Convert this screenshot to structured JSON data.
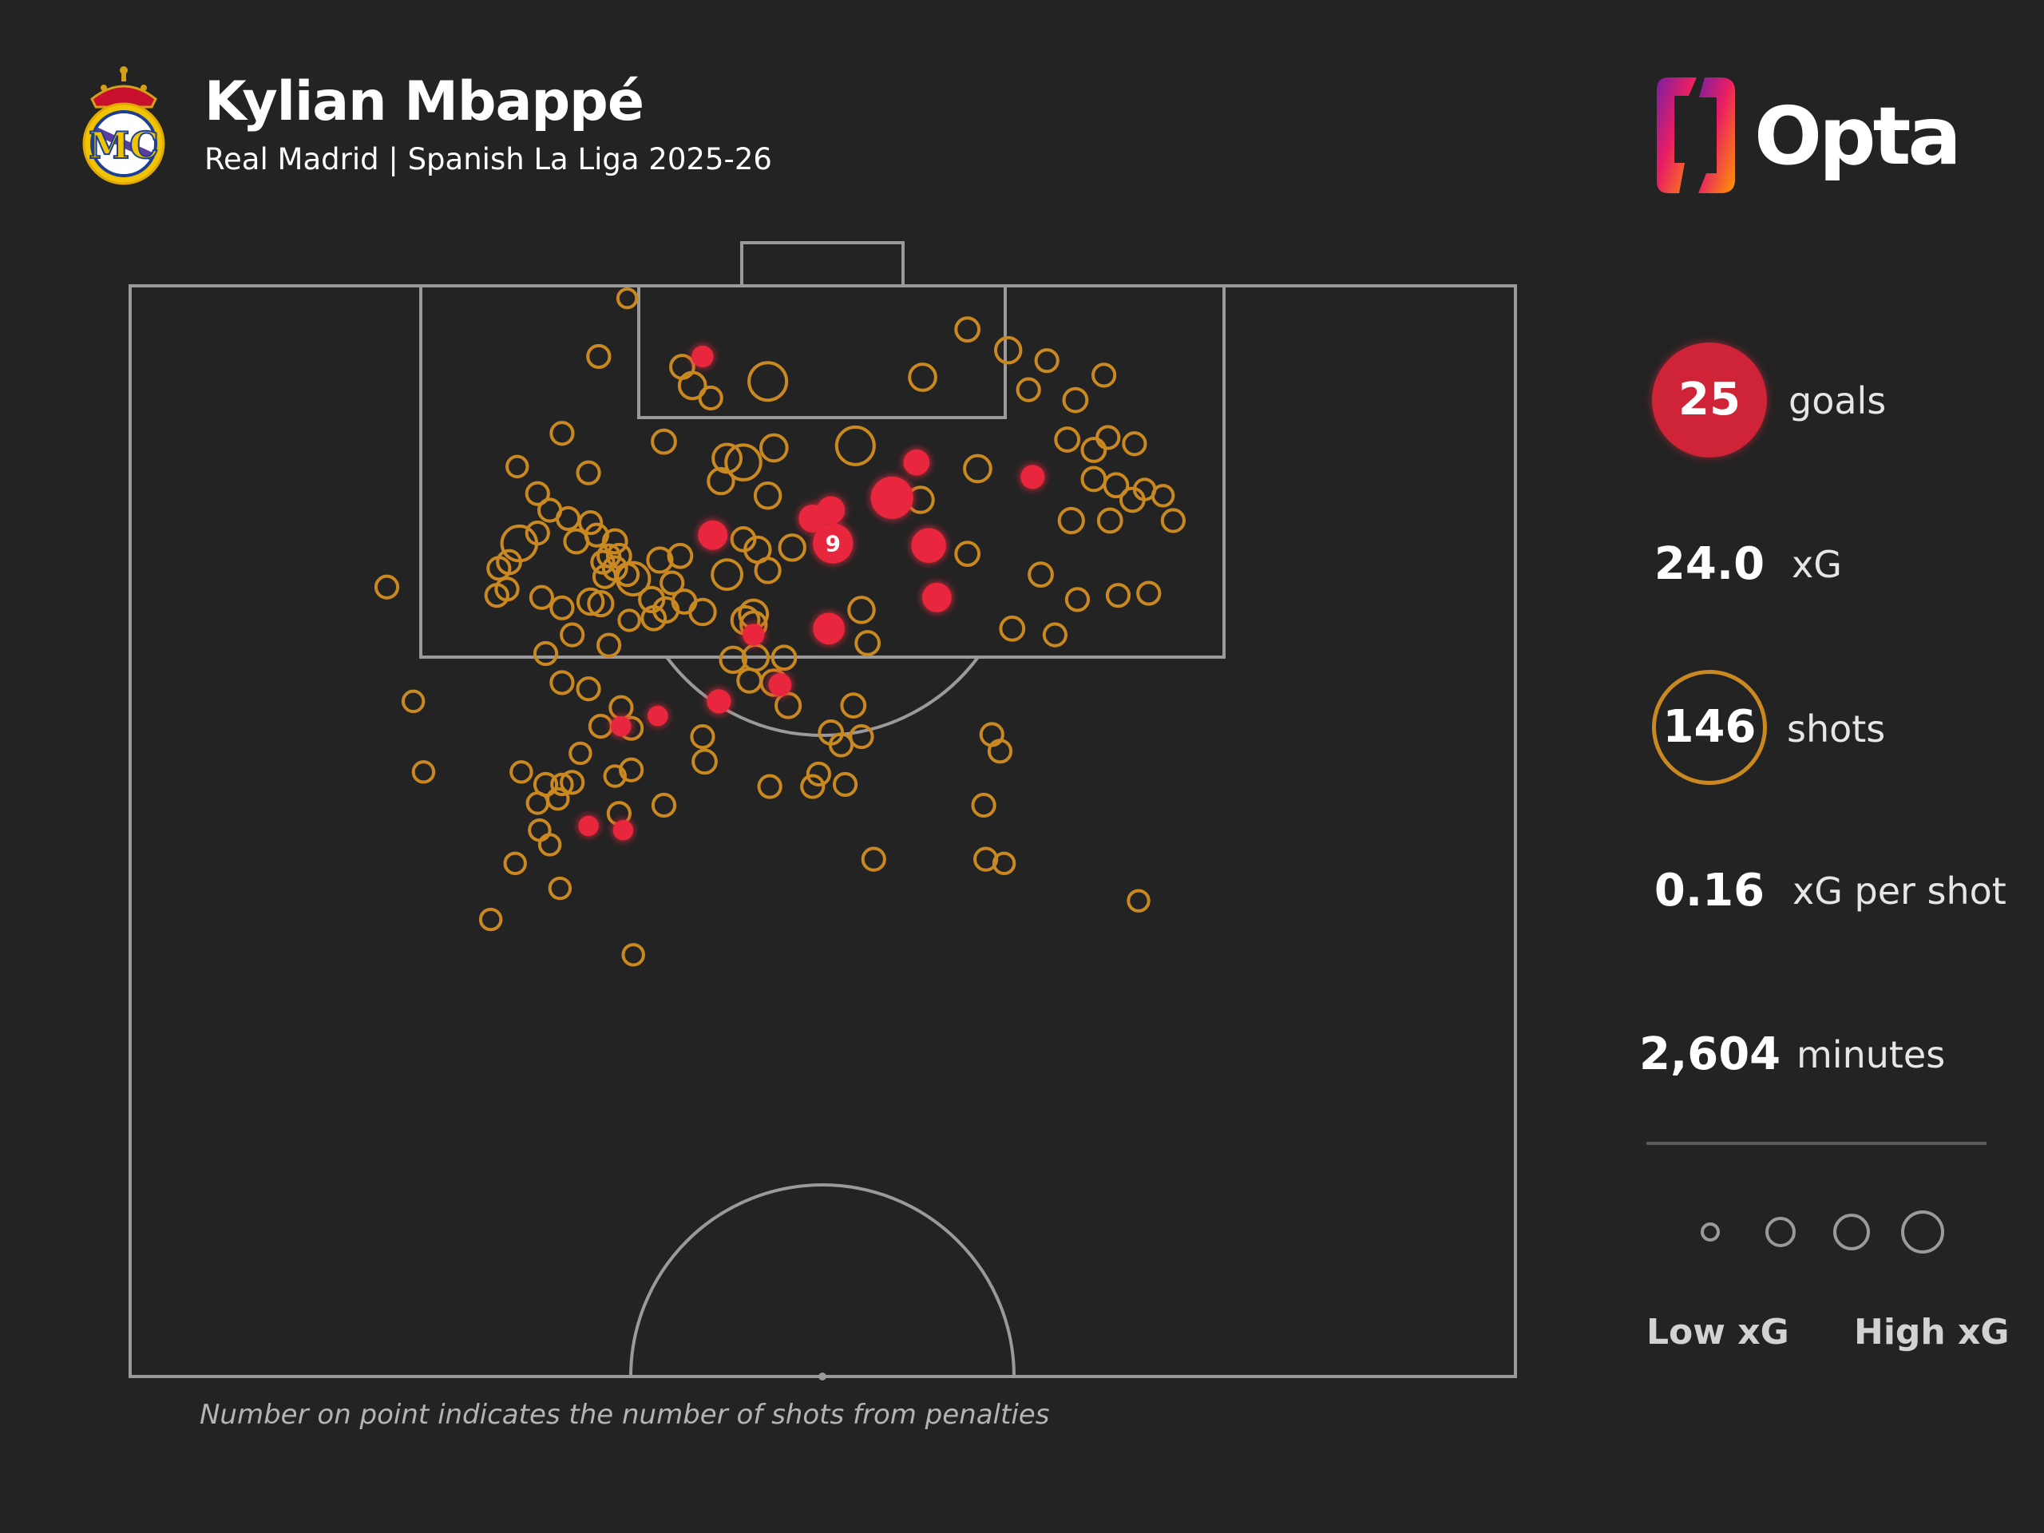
{
  "header": {
    "player_name": "Kylian Mbappé",
    "subtitle": "Real Madrid | Spanish La Liga 2025-26",
    "crest_icon": "real-madrid-crest-icon",
    "brand_logo_text": "Opta"
  },
  "stats": {
    "goals": {
      "value": "25",
      "label": "goals"
    },
    "xg": {
      "value": "24.0",
      "label": "xG"
    },
    "shots": {
      "value": "146",
      "label": "shots"
    },
    "xg_per_shot": {
      "value": "0.16",
      "label": "xG per shot"
    },
    "minutes": {
      "value": "2,604",
      "label": "minutes"
    }
  },
  "legend": {
    "low_label": "Low xG",
    "high_label": "High xG",
    "sizes": [
      0.05,
      0.15,
      0.3,
      0.5
    ]
  },
  "footnote": "Number on point indicates the number of shots from penalties",
  "colors": {
    "background": "#232323",
    "pitch_lines": "#9a9a9a",
    "goal": "#e8283c",
    "shot": "#c98920",
    "goals_badge": "#cf2337"
  },
  "chart_data": {
    "type": "scatter",
    "description_of_axes": "Half-pitch shot map; x = metres from left touchline (0-68), y = metres from goal line (0-52.5)",
    "xlim": [
      0,
      68
    ],
    "ylim": [
      0,
      52.5
    ],
    "series": [
      {
        "name": "shot",
        "points": [
          {
            "x": 24.4,
            "y": 0.6,
            "xg": 0.02
          },
          {
            "x": 23.0,
            "y": 3.4,
            "xg": 0.04
          },
          {
            "x": 27.1,
            "y": 3.9,
            "xg": 0.05
          },
          {
            "x": 27.6,
            "y": 4.8,
            "xg": 0.08
          },
          {
            "x": 28.5,
            "y": 5.4,
            "xg": 0.04
          },
          {
            "x": 31.3,
            "y": 4.6,
            "xg": 0.25
          },
          {
            "x": 38.9,
            "y": 4.4,
            "xg": 0.08
          },
          {
            "x": 41.1,
            "y": 2.1,
            "xg": 0.05
          },
          {
            "x": 43.1,
            "y": 3.1,
            "xg": 0.07
          },
          {
            "x": 46.4,
            "y": 5.5,
            "xg": 0.05
          },
          {
            "x": 46.0,
            "y": 7.4,
            "xg": 0.05
          },
          {
            "x": 41.6,
            "y": 8.8,
            "xg": 0.08
          },
          {
            "x": 35.6,
            "y": 7.7,
            "xg": 0.25
          },
          {
            "x": 31.6,
            "y": 7.8,
            "xg": 0.08
          },
          {
            "x": 29.3,
            "y": 8.3,
            "xg": 0.1
          },
          {
            "x": 30.1,
            "y": 8.5,
            "xg": 0.2
          },
          {
            "x": 29.0,
            "y": 9.4,
            "xg": 0.07
          },
          {
            "x": 31.3,
            "y": 10.1,
            "xg": 0.07
          },
          {
            "x": 32.5,
            "y": 12.6,
            "xg": 0.07
          },
          {
            "x": 30.1,
            "y": 12.2,
            "xg": 0.05
          },
          {
            "x": 27.0,
            "y": 13.0,
            "xg": 0.05
          },
          {
            "x": 26.2,
            "y": 7.5,
            "xg": 0.05
          },
          {
            "x": 21.2,
            "y": 7.1,
            "xg": 0.04
          },
          {
            "x": 22.5,
            "y": 9.0,
            "xg": 0.04
          },
          {
            "x": 19.0,
            "y": 8.7,
            "xg": 0.03
          },
          {
            "x": 20.0,
            "y": 10.0,
            "xg": 0.04
          },
          {
            "x": 20.6,
            "y": 10.8,
            "xg": 0.04
          },
          {
            "x": 20.0,
            "y": 11.9,
            "xg": 0.04
          },
          {
            "x": 21.5,
            "y": 11.2,
            "xg": 0.04
          },
          {
            "x": 21.9,
            "y": 12.3,
            "xg": 0.05
          },
          {
            "x": 22.6,
            "y": 11.4,
            "xg": 0.04
          },
          {
            "x": 22.9,
            "y": 12.0,
            "xg": 0.04
          },
          {
            "x": 23.8,
            "y": 12.3,
            "xg": 0.05
          },
          {
            "x": 23.5,
            "y": 13.0,
            "xg": 0.04
          },
          {
            "x": 23.2,
            "y": 13.3,
            "xg": 0.04
          },
          {
            "x": 24.0,
            "y": 13.0,
            "xg": 0.05
          },
          {
            "x": 23.8,
            "y": 13.6,
            "xg": 0.05
          },
          {
            "x": 23.3,
            "y": 14.0,
            "xg": 0.04
          },
          {
            "x": 24.4,
            "y": 13.9,
            "xg": 0.04
          },
          {
            "x": 19.1,
            "y": 12.4,
            "xg": 0.2
          },
          {
            "x": 18.6,
            "y": 13.3,
            "xg": 0.05
          },
          {
            "x": 18.1,
            "y": 13.6,
            "xg": 0.04
          },
          {
            "x": 18.5,
            "y": 14.6,
            "xg": 0.04
          },
          {
            "x": 18.0,
            "y": 14.9,
            "xg": 0.04
          },
          {
            "x": 20.2,
            "y": 15.0,
            "xg": 0.04
          },
          {
            "x": 21.2,
            "y": 15.5,
            "xg": 0.04
          },
          {
            "x": 22.6,
            "y": 15.2,
            "xg": 0.07
          },
          {
            "x": 23.1,
            "y": 15.3,
            "xg": 0.06
          },
          {
            "x": 24.7,
            "y": 14.1,
            "xg": 0.16
          },
          {
            "x": 25.6,
            "y": 15.1,
            "xg": 0.06
          },
          {
            "x": 25.7,
            "y": 16.0,
            "xg": 0.05
          },
          {
            "x": 26.3,
            "y": 15.6,
            "xg": 0.06
          },
          {
            "x": 27.2,
            "y": 15.2,
            "xg": 0.05
          },
          {
            "x": 26.6,
            "y": 14.3,
            "xg": 0.04
          },
          {
            "x": 26.0,
            "y": 13.2,
            "xg": 0.06
          },
          {
            "x": 24.5,
            "y": 16.1,
            "xg": 0.03
          },
          {
            "x": 23.5,
            "y": 17.3,
            "xg": 0.04
          },
          {
            "x": 28.1,
            "y": 15.7,
            "xg": 0.07
          },
          {
            "x": 29.3,
            "y": 13.9,
            "xg": 0.12
          },
          {
            "x": 30.6,
            "y": 15.8,
            "xg": 0.1
          },
          {
            "x": 30.2,
            "y": 16.1,
            "xg": 0.09
          },
          {
            "x": 30.6,
            "y": 16.3,
            "xg": 0.07
          },
          {
            "x": 30.8,
            "y": 12.7,
            "xg": 0.07
          },
          {
            "x": 29.6,
            "y": 18.0,
            "xg": 0.07
          },
          {
            "x": 30.7,
            "y": 17.9,
            "xg": 0.07
          },
          {
            "x": 32.1,
            "y": 17.9,
            "xg": 0.05
          },
          {
            "x": 30.4,
            "y": 19.0,
            "xg": 0.05
          },
          {
            "x": 31.6,
            "y": 19.1,
            "xg": 0.07
          },
          {
            "x": 32.3,
            "y": 20.2,
            "xg": 0.06
          },
          {
            "x": 31.3,
            "y": 13.7,
            "xg": 0.06
          },
          {
            "x": 35.9,
            "y": 15.6,
            "xg": 0.07
          },
          {
            "x": 36.2,
            "y": 17.2,
            "xg": 0.05
          },
          {
            "x": 38.8,
            "y": 10.3,
            "xg": 0.07
          },
          {
            "x": 41.1,
            "y": 12.9,
            "xg": 0.05
          },
          {
            "x": 43.3,
            "y": 16.5,
            "xg": 0.05
          },
          {
            "x": 44.7,
            "y": 13.9,
            "xg": 0.05
          },
          {
            "x": 46.2,
            "y": 11.3,
            "xg": 0.06
          },
          {
            "x": 46.5,
            "y": 15.1,
            "xg": 0.04
          },
          {
            "x": 48.5,
            "y": 14.9,
            "xg": 0.04
          },
          {
            "x": 50.0,
            "y": 14.8,
            "xg": 0.04
          },
          {
            "x": 51.2,
            "y": 11.3,
            "xg": 0.04
          },
          {
            "x": 48.4,
            "y": 9.6,
            "xg": 0.05
          },
          {
            "x": 47.3,
            "y": 7.9,
            "xg": 0.05
          },
          {
            "x": 47.3,
            "y": 9.3,
            "xg": 0.05
          },
          {
            "x": 48.0,
            "y": 7.3,
            "xg": 0.04
          },
          {
            "x": 47.8,
            "y": 4.3,
            "xg": 0.04
          },
          {
            "x": 44.1,
            "y": 5.0,
            "xg": 0.04
          },
          {
            "x": 45.0,
            "y": 3.6,
            "xg": 0.04
          },
          {
            "x": 49.3,
            "y": 7.6,
            "xg": 0.04
          },
          {
            "x": 49.8,
            "y": 9.8,
            "xg": 0.03
          },
          {
            "x": 49.2,
            "y": 10.3,
            "xg": 0.05
          },
          {
            "x": 48.1,
            "y": 11.3,
            "xg": 0.05
          },
          {
            "x": 50.7,
            "y": 10.1,
            "xg": 0.03
          },
          {
            "x": 45.4,
            "y": 16.8,
            "xg": 0.04
          },
          {
            "x": 12.6,
            "y": 14.5,
            "xg": 0.04
          },
          {
            "x": 20.4,
            "y": 17.7,
            "xg": 0.04
          },
          {
            "x": 21.2,
            "y": 19.1,
            "xg": 0.04
          },
          {
            "x": 21.7,
            "y": 16.8,
            "xg": 0.04
          },
          {
            "x": 22.5,
            "y": 19.4,
            "xg": 0.04
          },
          {
            "x": 23.1,
            "y": 21.2,
            "xg": 0.04
          },
          {
            "x": 24.1,
            "y": 20.3,
            "xg": 0.04
          },
          {
            "x": 24.6,
            "y": 21.3,
            "xg": 0.04
          },
          {
            "x": 24.6,
            "y": 23.3,
            "xg": 0.04
          },
          {
            "x": 23.8,
            "y": 23.6,
            "xg": 0.03
          },
          {
            "x": 22.1,
            "y": 22.5,
            "xg": 0.03
          },
          {
            "x": 24.0,
            "y": 25.4,
            "xg": 0.04
          },
          {
            "x": 28.2,
            "y": 22.9,
            "xg": 0.05
          },
          {
            "x": 28.1,
            "y": 21.7,
            "xg": 0.04
          },
          {
            "x": 34.4,
            "y": 21.5,
            "xg": 0.05
          },
          {
            "x": 35.5,
            "y": 20.2,
            "xg": 0.05
          },
          {
            "x": 34.9,
            "y": 22.1,
            "xg": 0.04
          },
          {
            "x": 35.9,
            "y": 21.7,
            "xg": 0.04
          },
          {
            "x": 35.1,
            "y": 24.0,
            "xg": 0.04
          },
          {
            "x": 36.5,
            "y": 27.6,
            "xg": 0.04
          },
          {
            "x": 42.3,
            "y": 21.6,
            "xg": 0.04
          },
          {
            "x": 42.7,
            "y": 22.4,
            "xg": 0.04
          },
          {
            "x": 33.8,
            "y": 23.5,
            "xg": 0.04
          },
          {
            "x": 33.5,
            "y": 24.1,
            "xg": 0.04
          },
          {
            "x": 41.9,
            "y": 25.0,
            "xg": 0.04
          },
          {
            "x": 42.0,
            "y": 27.6,
            "xg": 0.04
          },
          {
            "x": 42.9,
            "y": 27.8,
            "xg": 0.03
          },
          {
            "x": 31.4,
            "y": 24.1,
            "xg": 0.04
          },
          {
            "x": 26.2,
            "y": 25.0,
            "xg": 0.04
          },
          {
            "x": 13.9,
            "y": 20.0,
            "xg": 0.03
          },
          {
            "x": 14.4,
            "y": 23.4,
            "xg": 0.03
          },
          {
            "x": 19.2,
            "y": 23.4,
            "xg": 0.03
          },
          {
            "x": 20.4,
            "y": 24.0,
            "xg": 0.04
          },
          {
            "x": 20.0,
            "y": 24.9,
            "xg": 0.03
          },
          {
            "x": 21.0,
            "y": 24.7,
            "xg": 0.03
          },
          {
            "x": 21.7,
            "y": 23.9,
            "xg": 0.04
          },
          {
            "x": 21.2,
            "y": 24.0,
            "xg": 0.03
          },
          {
            "x": 20.1,
            "y": 26.2,
            "xg": 0.03
          },
          {
            "x": 20.6,
            "y": 26.9,
            "xg": 0.03
          },
          {
            "x": 18.9,
            "y": 27.8,
            "xg": 0.03
          },
          {
            "x": 21.1,
            "y": 29.0,
            "xg": 0.03
          },
          {
            "x": 17.7,
            "y": 30.5,
            "xg": 0.03
          },
          {
            "x": 24.7,
            "y": 32.2,
            "xg": 0.03
          },
          {
            "x": 49.5,
            "y": 29.6,
            "xg": 0.03
          }
        ]
      },
      {
        "name": "goal",
        "points": [
          {
            "x": 28.1,
            "y": 3.4,
            "xg": 0.04
          },
          {
            "x": 38.6,
            "y": 8.5,
            "xg": 0.08
          },
          {
            "x": 37.4,
            "y": 10.2,
            "xg": 0.35
          },
          {
            "x": 33.5,
            "y": 11.2,
            "xg": 0.1
          },
          {
            "x": 34.4,
            "y": 10.8,
            "xg": 0.1
          },
          {
            "x": 34.5,
            "y": 12.4,
            "xg": 0.3,
            "penalties": 9
          },
          {
            "x": 28.6,
            "y": 12.0,
            "xg": 0.12
          },
          {
            "x": 39.2,
            "y": 12.5,
            "xg": 0.2
          },
          {
            "x": 39.6,
            "y": 15.0,
            "xg": 0.12
          },
          {
            "x": 34.3,
            "y": 16.5,
            "xg": 0.15
          },
          {
            "x": 44.3,
            "y": 9.2,
            "xg": 0.06
          },
          {
            "x": 30.6,
            "y": 16.8,
            "xg": 0.04
          },
          {
            "x": 31.9,
            "y": 19.2,
            "xg": 0.05
          },
          {
            "x": 28.9,
            "y": 20.0,
            "xg": 0.06
          },
          {
            "x": 25.9,
            "y": 20.7,
            "xg": 0.03
          },
          {
            "x": 24.1,
            "y": 21.2,
            "xg": 0.03
          },
          {
            "x": 22.5,
            "y": 26.0,
            "xg": 0.03
          },
          {
            "x": 24.2,
            "y": 26.2,
            "xg": 0.03
          }
        ]
      }
    ]
  }
}
